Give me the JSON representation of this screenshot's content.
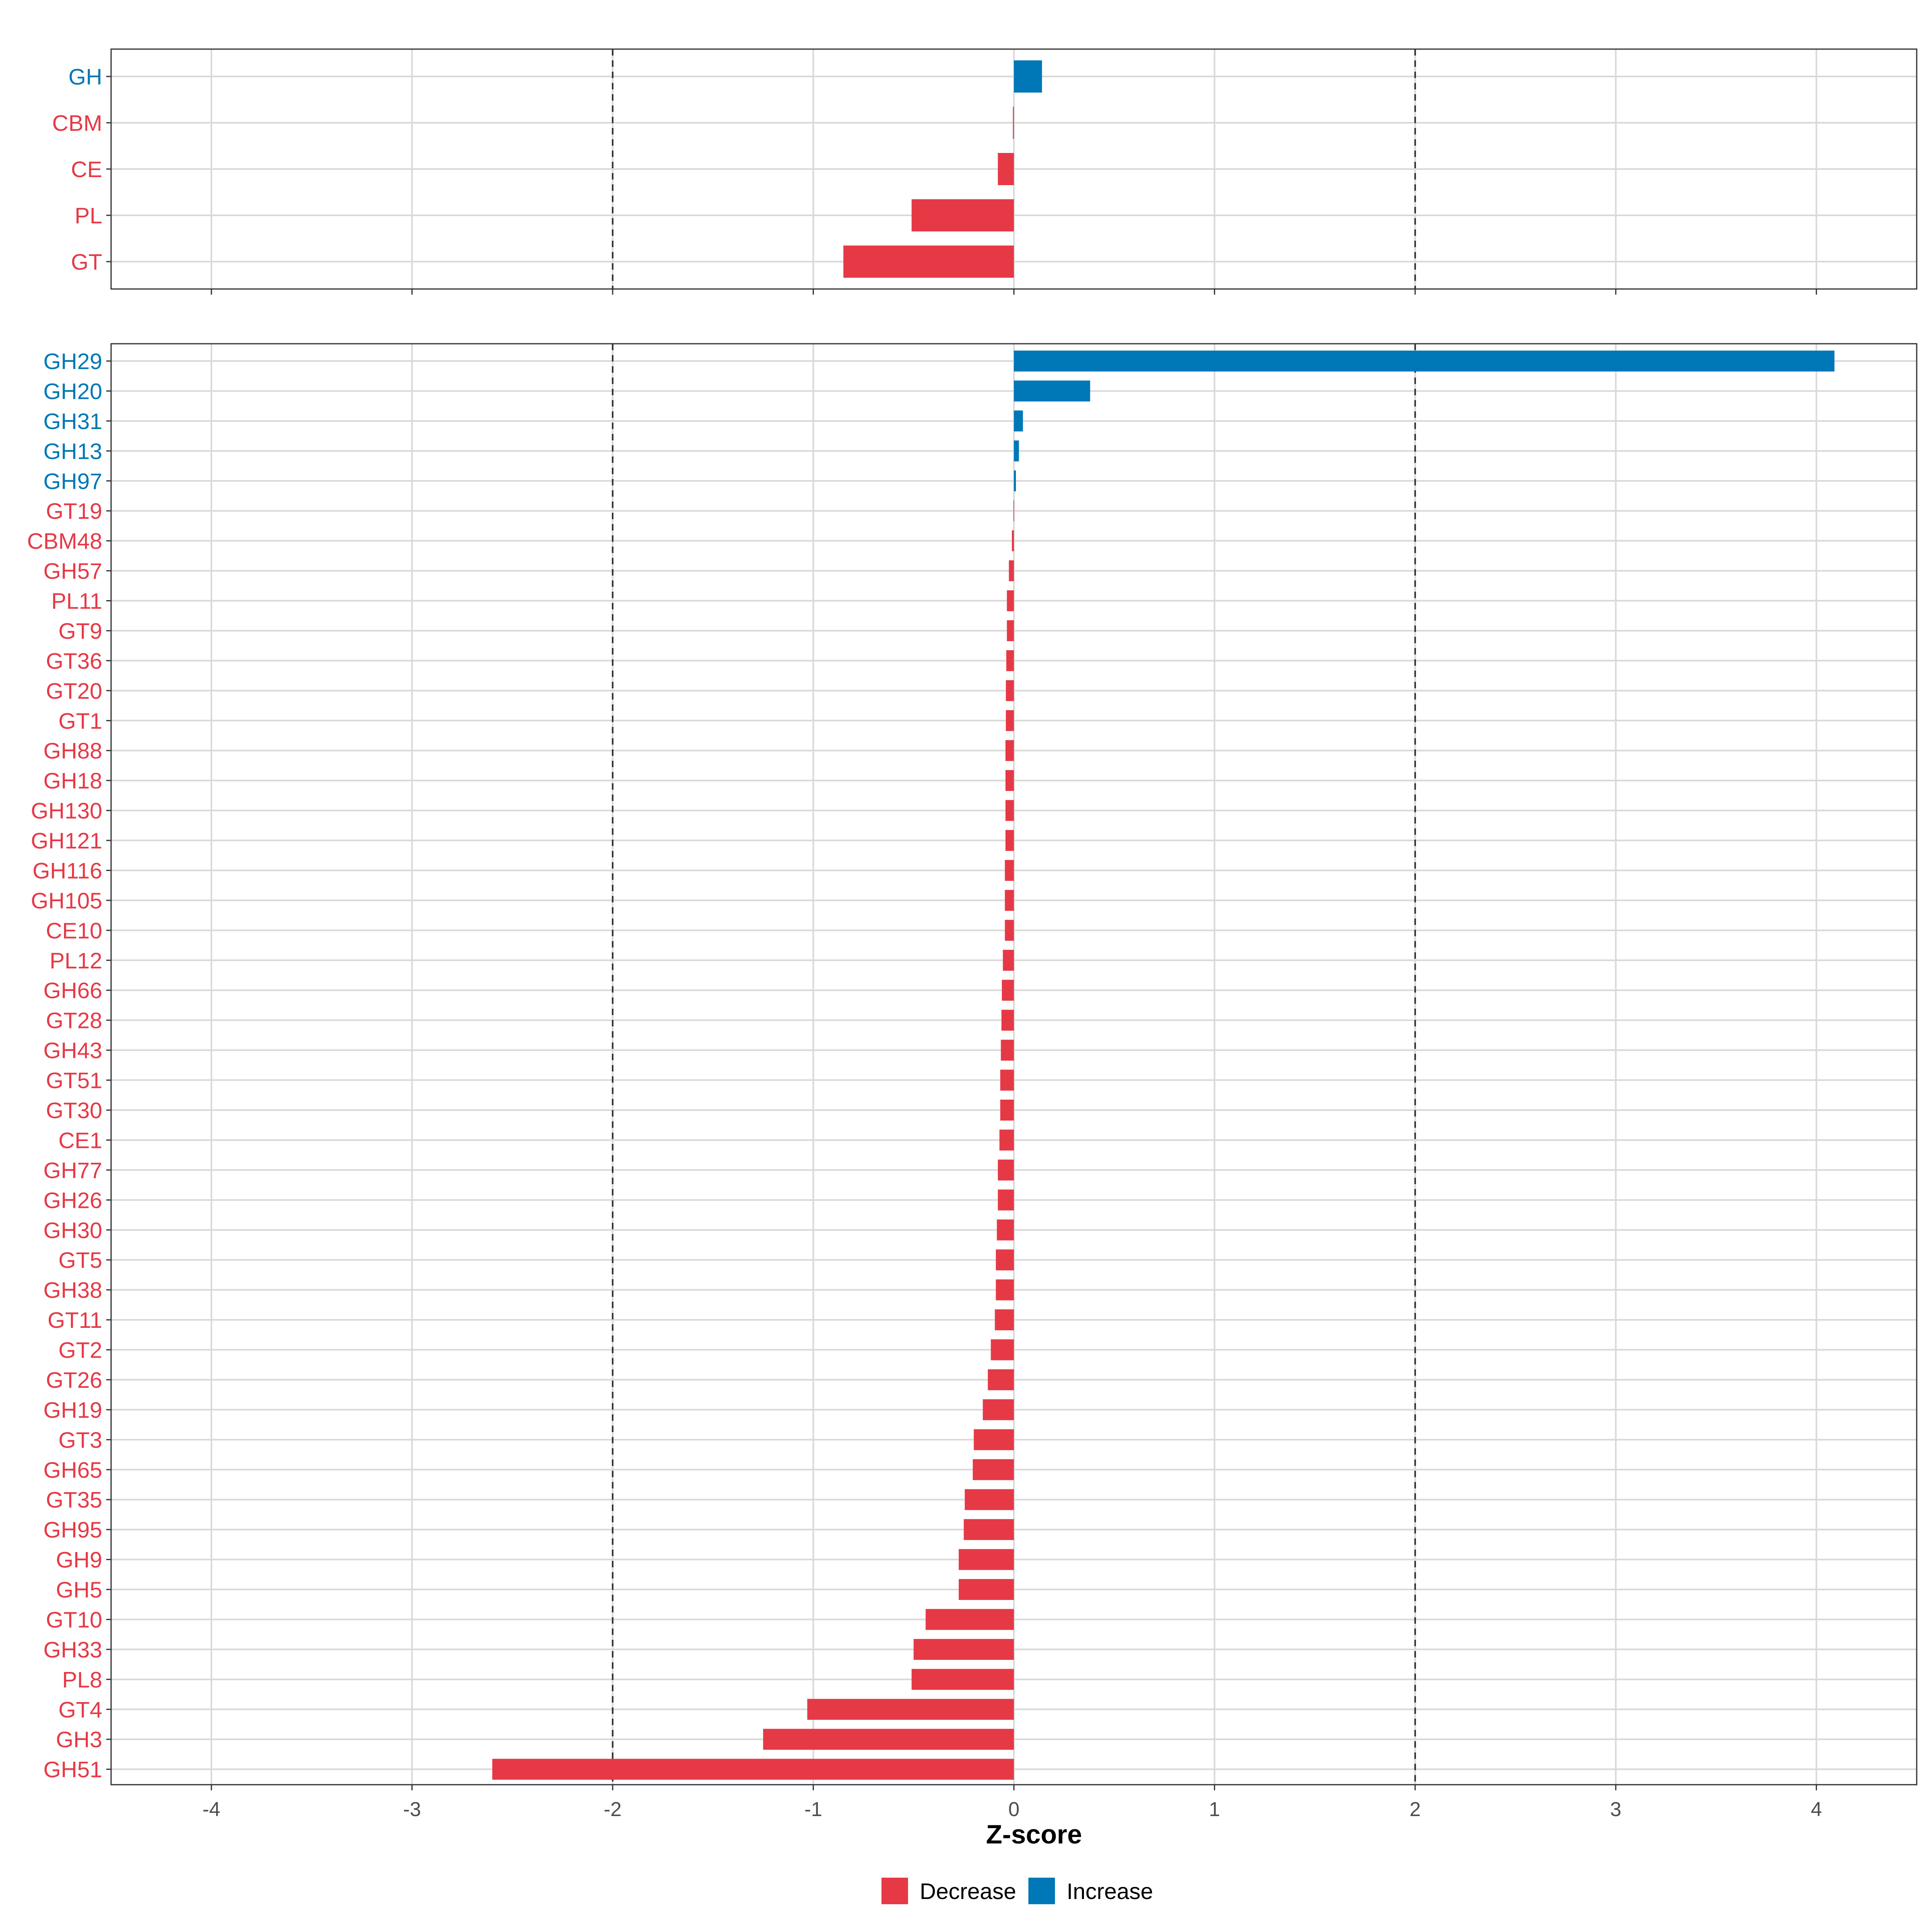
{
  "colors": {
    "decrease": "#E63946",
    "increase": "#0077B6",
    "reference": "#333333",
    "grid": "#d9d9d9",
    "border": "#333333"
  },
  "chart_data": [
    {
      "type": "bar",
      "orientation": "horizontal",
      "panel": "top",
      "xlim": [
        -4.5,
        4.5
      ],
      "reference_lines": [
        -2,
        2
      ],
      "categories": [
        "GH",
        "CBM",
        "CE",
        "PL",
        "GT"
      ],
      "values": [
        0.14,
        -0.005,
        -0.08,
        -0.51,
        -0.85
      ],
      "directions": [
        "Increase",
        "Decrease",
        "Decrease",
        "Decrease",
        "Decrease"
      ]
    },
    {
      "type": "bar",
      "orientation": "horizontal",
      "panel": "bottom",
      "xlim": [
        -4.5,
        4.5
      ],
      "reference_lines": [
        -2,
        2
      ],
      "categories": [
        "GH29",
        "GH20",
        "GH31",
        "GH13",
        "GH97",
        "GT19",
        "CBM48",
        "GH57",
        "PL11",
        "GT9",
        "GT36",
        "GT20",
        "GT1",
        "GH88",
        "GH18",
        "GH130",
        "GH121",
        "GH116",
        "GH105",
        "CE10",
        "PL12",
        "GH66",
        "GT28",
        "GH43",
        "GT51",
        "GT30",
        "CE1",
        "GH77",
        "GH26",
        "GH30",
        "GT5",
        "GH38",
        "GT11",
        "GT2",
        "GT26",
        "GH19",
        "GT3",
        "GH65",
        "GT35",
        "GH95",
        "GH9",
        "GH5",
        "GT10",
        "GH33",
        "PL8",
        "GT4",
        "GH3",
        "GH51"
      ],
      "values": [
        4.09,
        0.38,
        0.045,
        0.025,
        0.01,
        -0.002,
        -0.01,
        -0.025,
        -0.035,
        -0.035,
        -0.038,
        -0.04,
        -0.04,
        -0.042,
        -0.042,
        -0.042,
        -0.042,
        -0.045,
        -0.045,
        -0.045,
        -0.055,
        -0.06,
        -0.062,
        -0.065,
        -0.068,
        -0.068,
        -0.072,
        -0.08,
        -0.08,
        -0.085,
        -0.09,
        -0.09,
        -0.095,
        -0.115,
        -0.13,
        -0.155,
        -0.2,
        -0.205,
        -0.245,
        -0.25,
        -0.275,
        -0.275,
        -0.44,
        -0.5,
        -0.51,
        -1.03,
        -1.25,
        -2.6
      ],
      "directions": [
        "Increase",
        "Increase",
        "Increase",
        "Increase",
        "Increase",
        "Decrease",
        "Decrease",
        "Decrease",
        "Decrease",
        "Decrease",
        "Decrease",
        "Decrease",
        "Decrease",
        "Decrease",
        "Decrease",
        "Decrease",
        "Decrease",
        "Decrease",
        "Decrease",
        "Decrease",
        "Decrease",
        "Decrease",
        "Decrease",
        "Decrease",
        "Decrease",
        "Decrease",
        "Decrease",
        "Decrease",
        "Decrease",
        "Decrease",
        "Decrease",
        "Decrease",
        "Decrease",
        "Decrease",
        "Decrease",
        "Decrease",
        "Decrease",
        "Decrease",
        "Decrease",
        "Decrease",
        "Decrease",
        "Decrease",
        "Decrease",
        "Decrease",
        "Decrease",
        "Decrease",
        "Decrease",
        "Decrease"
      ]
    }
  ],
  "x_axis": {
    "ticks": [
      -4,
      -3,
      -2,
      -1,
      0,
      1,
      2,
      3,
      4
    ],
    "tick_labels": [
      "-4",
      "-3",
      "-2",
      "-1",
      "0",
      "1",
      "2",
      "3",
      "4"
    ],
    "label": "Z-score"
  },
  "legend": {
    "placement": "bottom",
    "items": [
      {
        "label": "Decrease",
        "key": "decrease"
      },
      {
        "label": "Increase",
        "key": "increase"
      }
    ]
  }
}
